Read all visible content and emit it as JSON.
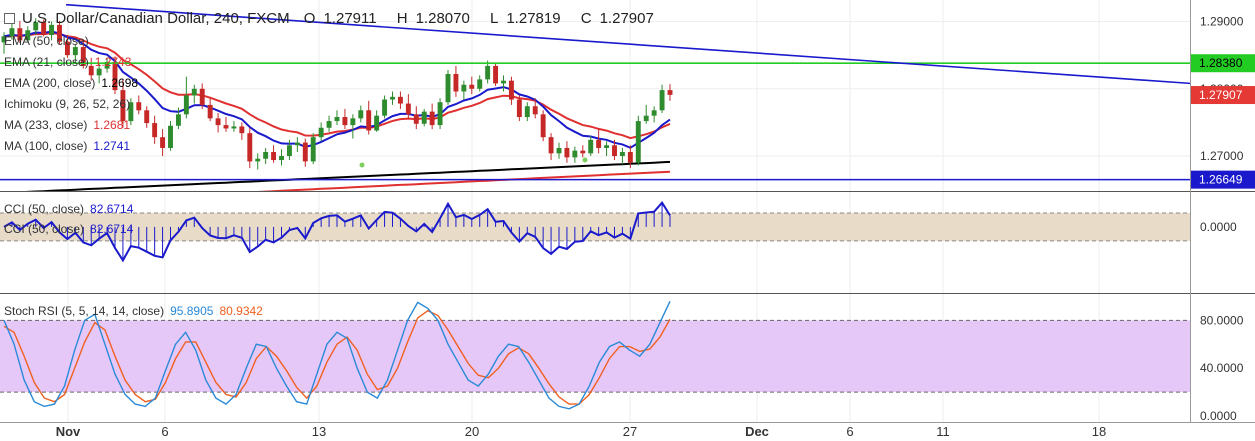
{
  "header": {
    "title": "U.S. Dollar/Canadian Dollar, 240, FXCM",
    "open_label": "O",
    "open": "1.27911",
    "high_label": "H",
    "high": "1.28070",
    "low_label": "L",
    "low": "1.27819",
    "close_label": "C",
    "close": "1.27907"
  },
  "indicators": [
    {
      "label": "EMA (50, close)",
      "value": "",
      "color": "#333333"
    },
    {
      "label": "EMA (21, close)",
      "value": "1.2743",
      "color": "#e03030"
    },
    {
      "label": "EMA (200, close)",
      "value": "1.2698",
      "color": "#000000"
    },
    {
      "label": "Ichimoku (9, 26, 52, 26)",
      "value": "",
      "color": "#333333"
    },
    {
      "label": "MA (233, close)",
      "value": "1.2681",
      "color": "#e03030"
    },
    {
      "label": "MA (100, close)",
      "value": "1.2741",
      "color": "#1a1acc"
    }
  ],
  "cci_labels": [
    {
      "label": "CCI (50, close)",
      "value": "82.6714"
    },
    {
      "label": "CCI (50, close)",
      "value": "82.6714"
    }
  ],
  "stoch_label": {
    "label": "Stoch RSI (5, 5, 14, 14, close)",
    "k": "95.8905",
    "d": "80.9342"
  },
  "colors": {
    "up": "#2e8b2e",
    "down": "#c62828",
    "ema21": "#e03030",
    "ema200": "#000000",
    "ma100": "#1a1acc",
    "trendline": "#1a1acc",
    "resistance": "#22cc22",
    "support": "#1a1acc",
    "price_badge": "#e53935",
    "cci_band": "#e8dcc8",
    "stoch_band": "#e6c8f8",
    "stoch_k": "#2a8ad8",
    "stoch_d": "#f06020"
  },
  "chart_data": [
    {
      "type": "candlestick",
      "title": "U.S. Dollar/Canadian Dollar, 240, FXCM",
      "x_tick_labels": [
        "Nov",
        "6",
        "13",
        "20",
        "27",
        "Dec",
        "6",
        "11",
        "18"
      ],
      "y_ticks": [
        1.27,
        1.28,
        1.29
      ],
      "y_tick_labels": [
        "1.27000",
        "1.28000",
        "1.29000"
      ],
      "ylim": [
        1.2648,
        1.2932
      ],
      "horizontal_levels": [
        {
          "value": 1.2838,
          "label": "1.28380",
          "color": "#22cc22"
        },
        {
          "value": 1.26649,
          "label": "1.26649",
          "color": "#1a1acc"
        }
      ],
      "last_price": {
        "value": 1.27907,
        "label": "1.27907"
      },
      "trendline": [
        {
          "bar": 0,
          "price": 1.2925
        },
        {
          "bar": 186,
          "price": 1.2778
        }
      ],
      "ohlc_4h_sample": [
        [
          1.2869,
          1.2884,
          1.2852,
          1.2878
        ],
        [
          1.2878,
          1.2899,
          1.2873,
          1.289
        ],
        [
          1.289,
          1.2901,
          1.2868,
          1.2872
        ],
        [
          1.2872,
          1.2893,
          1.287,
          1.2887
        ],
        [
          1.2887,
          1.2905,
          1.288,
          1.2899
        ],
        [
          1.2899,
          1.2903,
          1.2878,
          1.288
        ],
        [
          1.288,
          1.29,
          1.2872,
          1.2895
        ],
        [
          1.2895,
          1.2901,
          1.2866,
          1.287
        ],
        [
          1.287,
          1.288,
          1.2846,
          1.285
        ],
        [
          1.285,
          1.2866,
          1.2838,
          1.2862
        ],
        [
          1.2862,
          1.287,
          1.283,
          1.2834
        ],
        [
          1.2834,
          1.2846,
          1.2812,
          1.282
        ],
        [
          1.282,
          1.2838,
          1.2808,
          1.283
        ],
        [
          1.283,
          1.2846,
          1.2824,
          1.284
        ],
        [
          1.284,
          1.2848,
          1.2792,
          1.2798
        ],
        [
          1.2798,
          1.2815,
          1.2742,
          1.2752
        ],
        [
          1.2752,
          1.2786,
          1.2746,
          1.278
        ],
        [
          1.278,
          1.279,
          1.2762,
          1.2768
        ],
        [
          1.2768,
          1.2774,
          1.2742,
          1.2749
        ],
        [
          1.2749,
          1.276,
          1.2718,
          1.2728
        ],
        [
          1.2728,
          1.274,
          1.27,
          1.2712
        ],
        [
          1.2712,
          1.2752,
          1.2708,
          1.2745
        ],
        [
          1.2745,
          1.2772,
          1.274,
          1.2762
        ],
        [
          1.2762,
          1.2818,
          1.2756,
          1.279
        ],
        [
          1.279,
          1.2806,
          1.2778,
          1.28
        ],
        [
          1.28,
          1.2808,
          1.277,
          1.2776
        ],
        [
          1.2776,
          1.2786,
          1.2752,
          1.2756
        ],
        [
          1.2756,
          1.2764,
          1.2735,
          1.2746
        ],
        [
          1.2746,
          1.2758,
          1.2736,
          1.2741
        ],
        [
          1.2741,
          1.2752,
          1.2736,
          1.2744
        ],
        [
          1.2744,
          1.275,
          1.2724,
          1.2734
        ],
        [
          1.2734,
          1.2742,
          1.2682,
          1.2692
        ],
        [
          1.2692,
          1.2704,
          1.268,
          1.2696
        ],
        [
          1.2696,
          1.2712,
          1.2688,
          1.2706
        ],
        [
          1.2706,
          1.2716,
          1.269,
          1.2694
        ],
        [
          1.2694,
          1.271,
          1.2686,
          1.27
        ],
        [
          1.27,
          1.2724,
          1.2694,
          1.2716
        ],
        [
          1.2716,
          1.2728,
          1.2706,
          1.272
        ],
        [
          1.272,
          1.2726,
          1.2684,
          1.2692
        ],
        [
          1.2692,
          1.2734,
          1.2688,
          1.2728
        ],
        [
          1.2728,
          1.275,
          1.2722,
          1.2742
        ],
        [
          1.2742,
          1.276,
          1.2736,
          1.2752
        ],
        [
          1.2752,
          1.2768,
          1.2746,
          1.2758
        ],
        [
          1.2758,
          1.277,
          1.274,
          1.2746
        ],
        [
          1.2746,
          1.2762,
          1.2726,
          1.2756
        ],
        [
          1.2756,
          1.2775,
          1.275,
          1.2768
        ],
        [
          1.2768,
          1.2782,
          1.2732,
          1.2738
        ],
        [
          1.2738,
          1.2768,
          1.2736,
          1.276
        ],
        [
          1.276,
          1.279,
          1.2756,
          1.2784
        ],
        [
          1.2784,
          1.2796,
          1.2776,
          1.2788
        ],
        [
          1.2788,
          1.2796,
          1.277,
          1.2778
        ],
        [
          1.2778,
          1.2792,
          1.2756,
          1.2762
        ],
        [
          1.2762,
          1.2774,
          1.274,
          1.2748
        ],
        [
          1.2748,
          1.277,
          1.2744,
          1.2766
        ],
        [
          1.2766,
          1.2778,
          1.274,
          1.2746
        ],
        [
          1.2746,
          1.2786,
          1.274,
          1.278
        ],
        [
          1.278,
          1.2828,
          1.2776,
          1.2822
        ],
        [
          1.2822,
          1.2834,
          1.2788,
          1.2796
        ],
        [
          1.2796,
          1.2812,
          1.2784,
          1.2806
        ],
        [
          1.2806,
          1.2818,
          1.2792,
          1.28
        ],
        [
          1.28,
          1.282,
          1.2796,
          1.2814
        ],
        [
          1.2814,
          1.2842,
          1.2808,
          1.2834
        ],
        [
          1.2834,
          1.2838,
          1.2804,
          1.2808
        ],
        [
          1.2808,
          1.282,
          1.2796,
          1.2812
        ],
        [
          1.2812,
          1.2818,
          1.2776,
          1.2784
        ],
        [
          1.2784,
          1.279,
          1.2752,
          1.2758
        ],
        [
          1.2758,
          1.278,
          1.2752,
          1.2774
        ],
        [
          1.2774,
          1.2786,
          1.2756,
          1.2762
        ],
        [
          1.2762,
          1.2768,
          1.2722,
          1.2728
        ],
        [
          1.2728,
          1.2734,
          1.2694,
          1.2704
        ],
        [
          1.2704,
          1.272,
          1.2696,
          1.2712
        ],
        [
          1.2712,
          1.2722,
          1.269,
          1.2698
        ],
        [
          1.2698,
          1.2714,
          1.269,
          1.2708
        ],
        [
          1.2708,
          1.2716,
          1.2698,
          1.2704
        ],
        [
          1.2704,
          1.273,
          1.27,
          1.2724
        ],
        [
          1.2724,
          1.274,
          1.2704,
          1.2712
        ],
        [
          1.2712,
          1.2722,
          1.27,
          1.2716
        ],
        [
          1.2716,
          1.2724,
          1.2694,
          1.27
        ],
        [
          1.27,
          1.2712,
          1.2688,
          1.2706
        ],
        [
          1.2706,
          1.2716,
          1.2682,
          1.269
        ],
        [
          1.269,
          1.276,
          1.2686,
          1.2752
        ],
        [
          1.2752,
          1.2776,
          1.2748,
          1.276
        ],
        [
          1.276,
          1.2774,
          1.275,
          1.2768
        ],
        [
          1.2768,
          1.2806,
          1.2764,
          1.2798
        ],
        [
          1.2798,
          1.2807,
          1.2782,
          1.2791
        ]
      ]
    },
    {
      "type": "line",
      "title": "CCI (50, close)",
      "y_ticks": [
        0
      ],
      "y_tick_labels": [
        "0.0000"
      ],
      "ylim": [
        -280,
        250
      ],
      "band": [
        -100,
        100
      ],
      "last_value": 82.6714
    },
    {
      "type": "line",
      "title": "Stoch RSI (5, 5, 14, 14, close)",
      "y_ticks": [
        0,
        40,
        80
      ],
      "y_tick_labels": [
        "0.0000",
        "40.0000",
        "80.0000"
      ],
      "ylim": [
        -5,
        102
      ],
      "band": [
        20,
        80
      ],
      "series": [
        {
          "name": "K",
          "last_value": 95.8905,
          "values": [
            80,
            60,
            30,
            12,
            8,
            10,
            25,
            55,
            80,
            85,
            60,
            35,
            18,
            10,
            8,
            15,
            38,
            60,
            70,
            55,
            30,
            15,
            10,
            18,
            40,
            60,
            58,
            40,
            25,
            12,
            10,
            35,
            60,
            70,
            65,
            40,
            20,
            15,
            30,
            55,
            80,
            95,
            90,
            80,
            60,
            45,
            30,
            25,
            35,
            50,
            60,
            58,
            45,
            30,
            15,
            8,
            6,
            10,
            25,
            45,
            58,
            62,
            55,
            50,
            60,
            78,
            95.9
          ]
        },
        {
          "name": "D",
          "last_value": 80.9342,
          "values": [
            75,
            70,
            50,
            28,
            15,
            12,
            18,
            40,
            62,
            78,
            72,
            50,
            30,
            18,
            12,
            14,
            28,
            48,
            62,
            62,
            45,
            28,
            18,
            16,
            28,
            48,
            58,
            50,
            38,
            24,
            15,
            25,
            45,
            60,
            66,
            55,
            35,
            22,
            25,
            40,
            62,
            82,
            88,
            84,
            72,
            58,
            44,
            34,
            32,
            40,
            52,
            57,
            52,
            40,
            27,
            16,
            10,
            10,
            18,
            32,
            48,
            58,
            58,
            54,
            56,
            66,
            80.9
          ]
        }
      ]
    }
  ]
}
